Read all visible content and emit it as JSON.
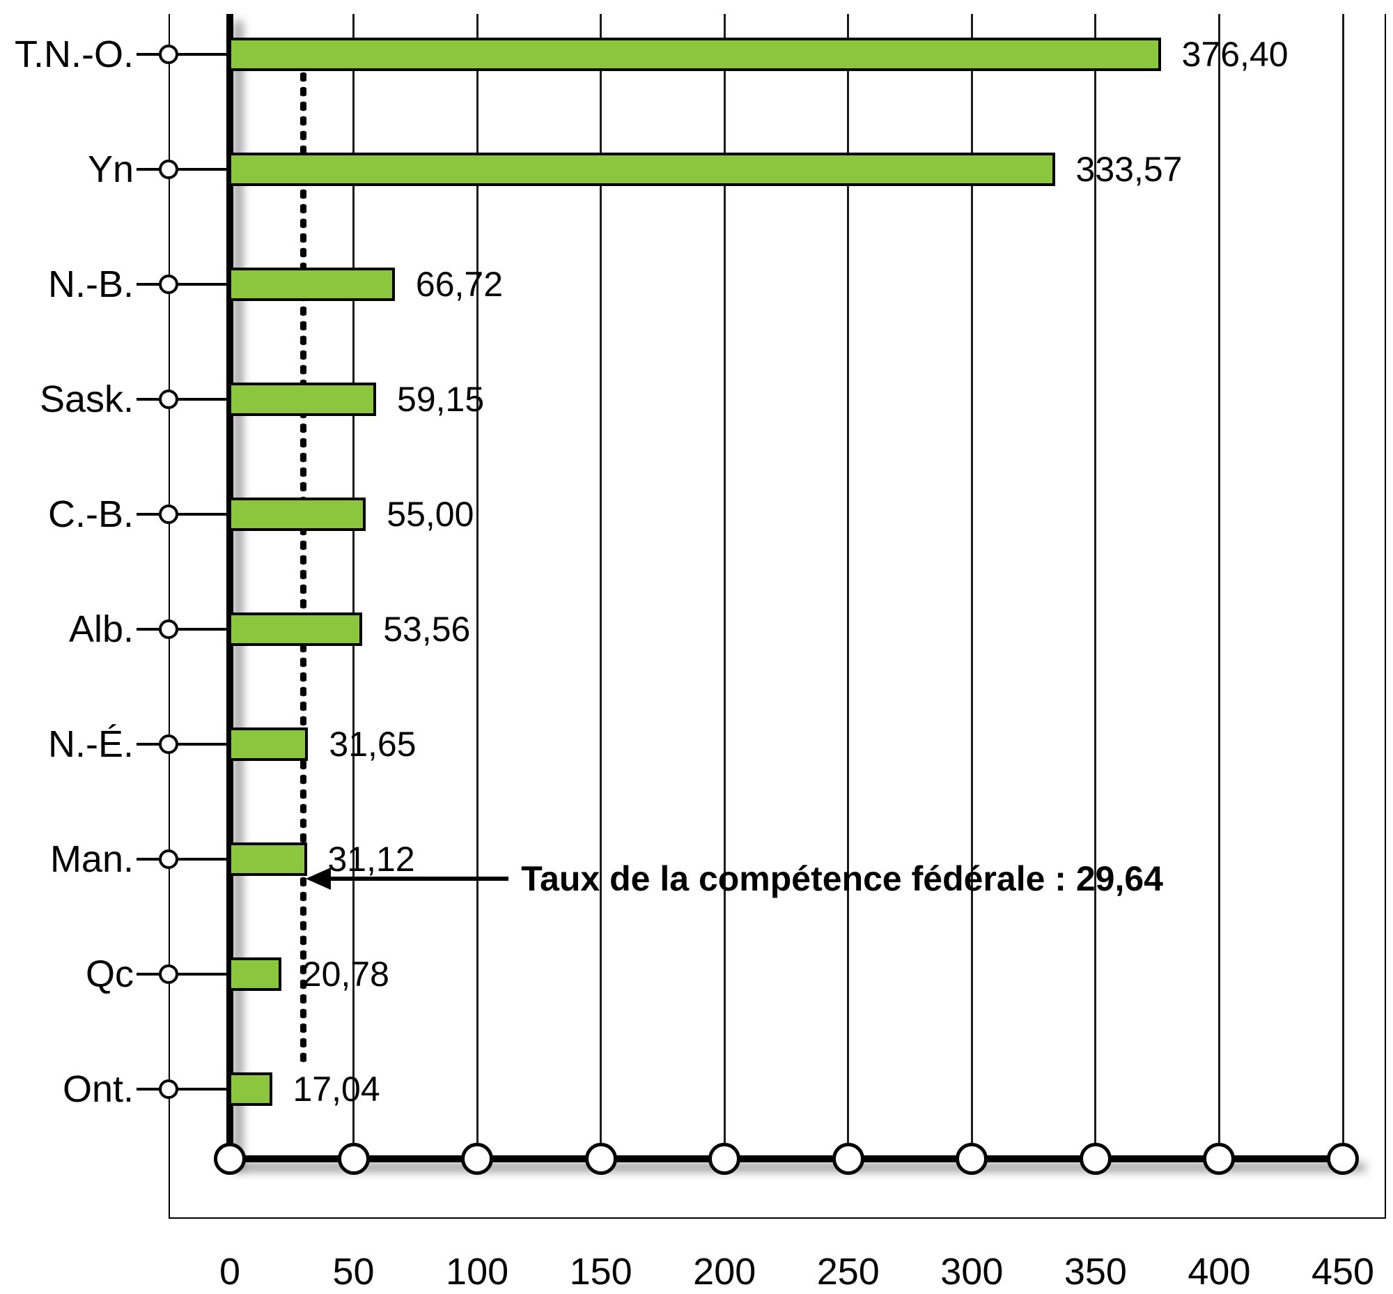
{
  "chart_data": {
    "type": "bar",
    "orientation": "horizontal",
    "categories": [
      "T.N.-O.",
      "Yn",
      "N.-B.",
      "Sask.",
      "C.-B.",
      "Alb.",
      "N.-É.",
      "Man.",
      "Qc",
      "Ont."
    ],
    "values": [
      376.4,
      333.57,
      66.72,
      59.15,
      55.0,
      53.56,
      31.65,
      31.12,
      20.78,
      17.04
    ],
    "value_labels": [
      "376,40",
      "333,57",
      "66,72",
      "59,15",
      "55,00",
      "53,56",
      "31,65",
      "31,12",
      "20,78",
      "17,04"
    ],
    "x_ticks": [
      0,
      50,
      100,
      150,
      200,
      250,
      300,
      350,
      400,
      450
    ],
    "xlim": [
      0,
      450
    ],
    "reference_line": {
      "value": 29.64,
      "label": "Taux de la compétence fédérale : 29,64"
    },
    "bar_color": "#8CC63F",
    "bar_border_color": "#000000",
    "grid": true,
    "legend": "none"
  }
}
